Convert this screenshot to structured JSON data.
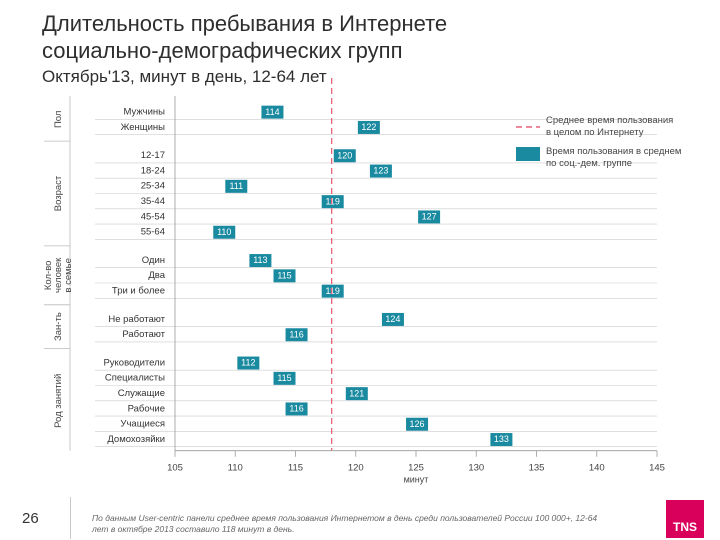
{
  "header": {
    "title_line1": "Длительность пребывания в Интернете",
    "title_line2": "социально-демографических групп",
    "subtitle": "Октябрь'13, минут в день, 12-64 лет"
  },
  "footer": {
    "page_number": "26",
    "note": "По данным User-centric панели среднее время пользования Интернетом в день среди пользователей России 100 000+, 12-64 лет в октябре 2013 составило 118 минут в день.",
    "logo_text": "TNS"
  },
  "legend": {
    "avg_line_1": "Среднее время пользования",
    "avg_line_2": "в целом по Интернету",
    "group_line_1": "Время пользования в среднем",
    "group_line_2": "по соц.-дем. группе"
  },
  "colors": {
    "bar": "#1a8aa0",
    "avg_line": "#e8637a",
    "grid": "#cccccc"
  },
  "chart_data": {
    "type": "bar",
    "orientation": "horizontal",
    "average": 118,
    "xlim": [
      105,
      145
    ],
    "xticks": [
      105,
      110,
      115,
      120,
      125,
      130,
      135,
      140,
      145
    ],
    "xlabel": "минут",
    "groups": [
      {
        "label": "Пол",
        "items": [
          {
            "label": "Мужчины",
            "value": 114
          },
          {
            "label": "Женщины",
            "value": 122
          }
        ]
      },
      {
        "label": "Возраст",
        "items": [
          {
            "label": "12-17",
            "value": 120
          },
          {
            "label": "18-24",
            "value": 123
          },
          {
            "label": "25-34",
            "value": 111
          },
          {
            "label": "35-44",
            "value": 119
          },
          {
            "label": "45-54",
            "value": 127
          },
          {
            "label": "55-64",
            "value": 110
          }
        ]
      },
      {
        "label": "Кол-во человек в семье",
        "items": [
          {
            "label": "Один",
            "value": 113
          },
          {
            "label": "Два",
            "value": 115
          },
          {
            "label": "Три и более",
            "value": 119
          }
        ]
      },
      {
        "label": "Зан-ть",
        "items": [
          {
            "label": "Не работают",
            "value": 124
          },
          {
            "label": "Работают",
            "value": 116
          }
        ]
      },
      {
        "label": "Род занятий",
        "items": [
          {
            "label": "Руководители",
            "value": 112
          },
          {
            "label": "Специалисты",
            "value": 115
          },
          {
            "label": "Служащие",
            "value": 121
          },
          {
            "label": "Рабочие",
            "value": 116
          },
          {
            "label": "Учащиеся",
            "value": 126
          },
          {
            "label": "Домохозяйки",
            "value": 133
          }
        ]
      }
    ]
  }
}
